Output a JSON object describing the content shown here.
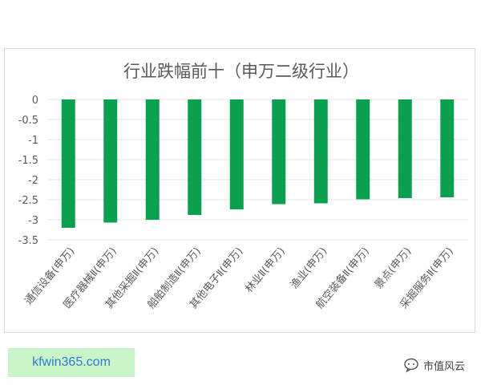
{
  "chart_data": {
    "type": "bar",
    "title": "行业跌幅前十（申万二级行业）",
    "categories": [
      "通信设备(申万)",
      "医疗器械Ⅱ(申万)",
      "其他采掘Ⅱ(申万)",
      "船舶制造Ⅱ(申万)",
      "其他电子Ⅱ(申万)",
      "林业Ⅱ(申万)",
      "渔业(申万)",
      "航空装备Ⅱ(申万)",
      "景点(申万)",
      "采掘服务Ⅱ(申万)"
    ],
    "values": [
      -3.2,
      -3.07,
      -3.0,
      -2.88,
      -2.74,
      -2.61,
      -2.59,
      -2.49,
      -2.46,
      -2.44
    ],
    "yticks": [
      "0",
      "-0.5",
      "-1",
      "-1.5",
      "-2",
      "-2.5",
      "-3",
      "-3.5"
    ],
    "ylim": [
      -3.5,
      0
    ],
    "grid": true,
    "bar_color": "#0aa04f"
  },
  "watermark": {
    "text": "市值风云",
    "icon": "wechat-bubble-icon"
  },
  "banner": {
    "text": "kfwin365.com"
  }
}
